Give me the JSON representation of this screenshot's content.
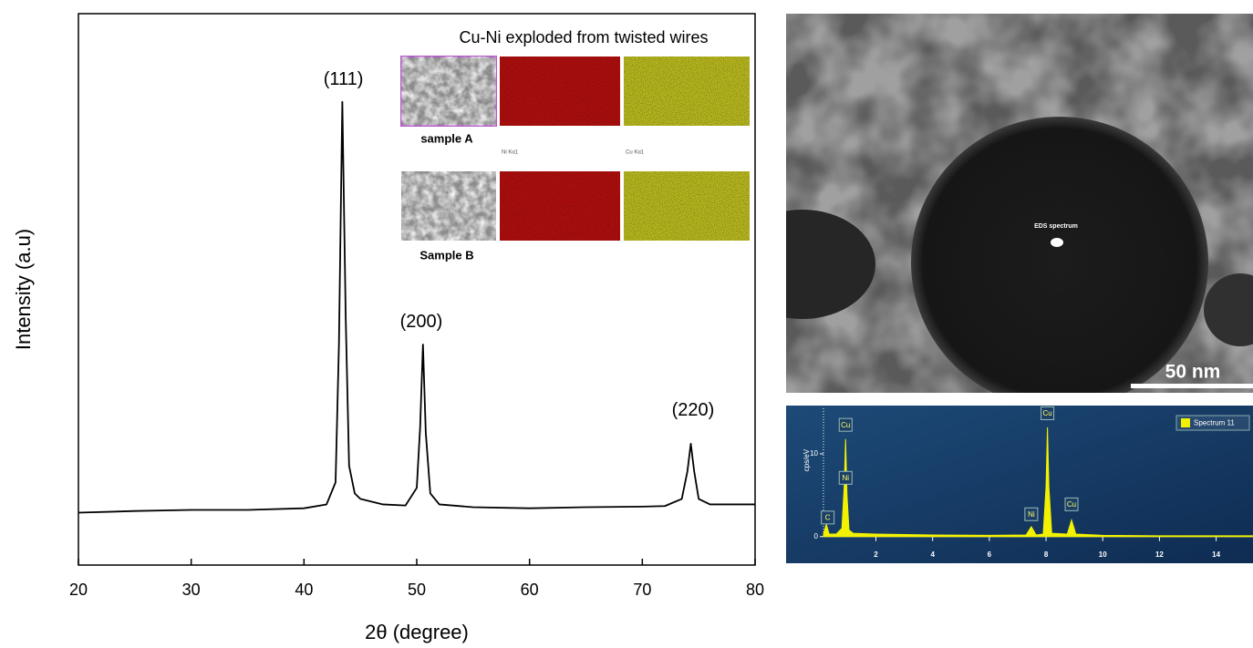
{
  "chart_data": [
    {
      "type": "line",
      "y_label": "Intensity (a.u)",
      "x_label": "2θ (degree)",
      "xlim": [
        20,
        80
      ],
      "xticks": [
        20,
        30,
        40,
        50,
        60,
        70,
        80
      ],
      "ylim": [
        0,
        100
      ],
      "series": [
        {
          "color": "#000000",
          "x": [
            20,
            25,
            30,
            35,
            40,
            42,
            42.8,
            43.1,
            43.4,
            43.7,
            44,
            44.5,
            45,
            47,
            49,
            50,
            50.3,
            50.55,
            50.8,
            51.2,
            52,
            55,
            60,
            65,
            70,
            72,
            73.5,
            74,
            74.3,
            74.6,
            75,
            76,
            80
          ],
          "values": [
            9.5,
            9.8,
            10,
            10,
            10.3,
            11,
            15,
            40,
            84,
            45,
            18,
            13,
            12,
            11,
            10.8,
            14,
            25,
            40,
            24,
            13,
            11,
            10.5,
            10.3,
            10.5,
            10.6,
            10.7,
            12,
            17,
            22,
            17,
            12,
            11,
            11
          ]
        }
      ],
      "annotations": [
        {
          "text": "(111)",
          "x": 43.5,
          "y": 88
        },
        {
          "text": "(200)",
          "x": 50.4,
          "y": 44
        },
        {
          "text": "(220)",
          "x": 74.5,
          "y": 28
        }
      ],
      "inset": {
        "title": "Cu-Ni exploded from twisted wires",
        "samples": [
          "sample A",
          "Sample B"
        ],
        "map_labels": [
          "Ni Kα1",
          "Cu Kα1"
        ]
      }
    },
    {
      "type": "area",
      "y_label": "cps/eV",
      "xlim": [
        0.15,
        15.3
      ],
      "xticks": [
        2,
        4,
        6,
        8,
        10,
        12,
        14
      ],
      "ylim": [
        -3,
        15.5
      ],
      "yticks": [
        0,
        10
      ],
      "legend": "top-right",
      "series": [
        {
          "name": "Spectrum 11",
          "color": "#f2f200",
          "x": [
            0.15,
            0.25,
            0.35,
            0.6,
            0.8,
            0.88,
            0.93,
            0.98,
            1.05,
            1.2,
            2,
            4,
            6,
            7.3,
            7.48,
            7.65,
            7.9,
            8.0,
            8.05,
            8.1,
            8.2,
            8.75,
            8.9,
            9.05,
            10,
            12,
            15.3
          ],
          "values": [
            0.3,
            1.5,
            0.3,
            0.3,
            1,
            6,
            11.8,
            5,
            0.8,
            0.4,
            0.3,
            0.2,
            0.15,
            0.2,
            1.2,
            0.2,
            0.3,
            6,
            13.2,
            6,
            0.4,
            0.3,
            2,
            0.3,
            0.15,
            0.1,
            0.1
          ]
        }
      ],
      "annotations": [
        {
          "text": "C",
          "x": 0.3,
          "y": 2.3
        },
        {
          "text": "Cu",
          "x": 0.93,
          "y": 13.5
        },
        {
          "text": "Ni",
          "x": 0.93,
          "y": 7.1
        },
        {
          "text": "Ni",
          "x": 7.48,
          "y": 2.7
        },
        {
          "text": "Cu",
          "x": 8.05,
          "y": 14.9
        },
        {
          "text": "Cu",
          "x": 8.9,
          "y": 3.9
        }
      ]
    }
  ],
  "tem_image": {
    "label": "EDS spectrum",
    "scale_bar": "50 nm"
  }
}
